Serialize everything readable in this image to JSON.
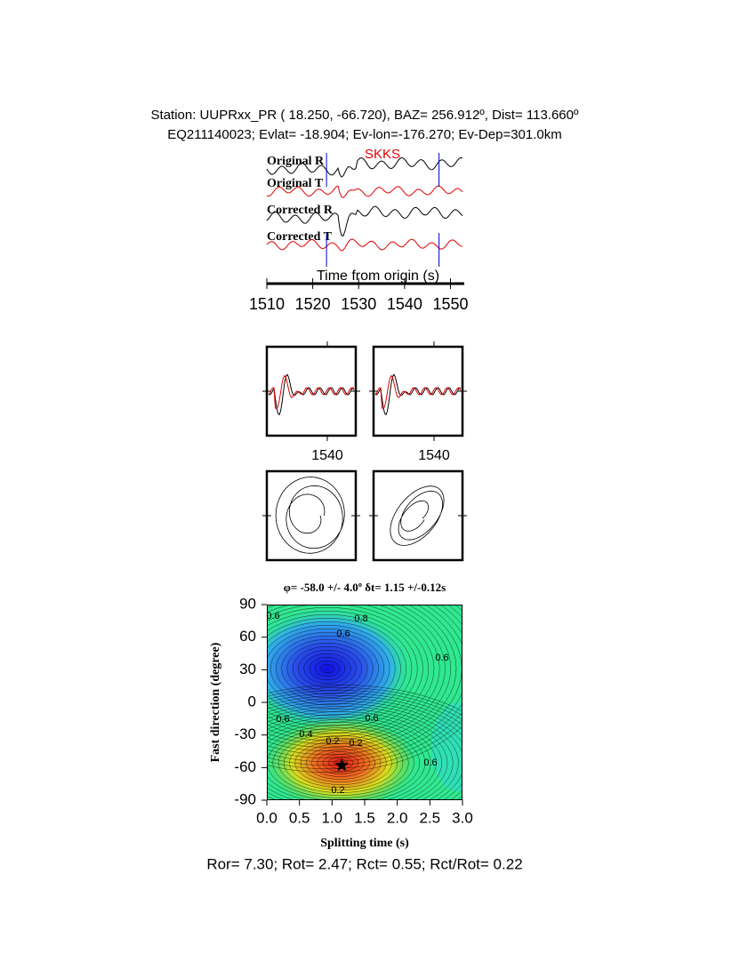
{
  "header": {
    "line1": "Station: UUPRxx_PR (  18.250,  -66.720), BAZ=  256.912º, Dist=  113.660º",
    "line2": "EQ211140023; Evlat= -18.904; Ev-lon=-176.270; Ev-Dep=301.0km"
  },
  "seismogram": {
    "phase": "SKKS",
    "traces": [
      "Original R",
      "Original T",
      "Corrected R",
      "Corrected T"
    ],
    "xlabel": "Time from origin (s)",
    "xlim": [
      1510,
      1553
    ],
    "xticks": [
      1510,
      1520,
      1530,
      1540,
      1550
    ],
    "window": [
      1523,
      1547.5
    ]
  },
  "particles": {
    "xlim": [
      1523,
      1548
    ],
    "xticks": [
      1540
    ]
  },
  "grid_search": {
    "title": "φ= -58.0 +/- 4.0º δt= 1.15 +/-0.12s",
    "xlabel": "Splitting time (s)",
    "ylabel": "Fast direction (degree)",
    "xlim": [
      0,
      3
    ],
    "ylim": [
      -90,
      90
    ],
    "xticks": [
      {
        "value": 0,
        "label": "0.0"
      },
      0.5,
      {
        "value": 1,
        "label": "1.0"
      },
      1.5,
      {
        "value": 2,
        "label": "2.0"
      },
      2.5,
      {
        "value": 3,
        "label": "3.0"
      }
    ],
    "yticks": [
      -90,
      -60,
      -30,
      0,
      30,
      60,
      90
    ],
    "best": {
      "dt": 1.15,
      "phi": -58
    },
    "contour_labels": [
      "0.6",
      "0.8",
      "0.6",
      "0.6",
      "0.6",
      "0.4",
      "0.2",
      "0.2",
      "0.2",
      "0.6",
      "0.6"
    ]
  },
  "footer": "Ror= 7.30; Rot= 2.47; Rct= 0.55; Rct/Rot= 0.22"
}
